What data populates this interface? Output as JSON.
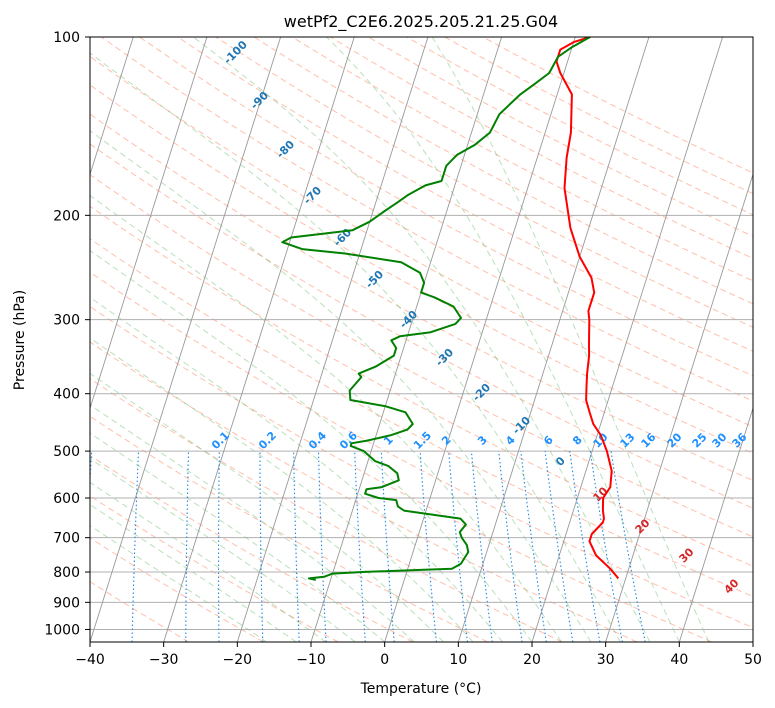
{
  "chart_data": {
    "type": "line",
    "title": "wetPf2_C2E6.2025.205.21.25.G04",
    "xlabel": "Temperature (°C)",
    "ylabel": "Pressure (hPa)",
    "xlim": [
      -40,
      50
    ],
    "ylim": [
      1050,
      100
    ],
    "y_scale": "log",
    "grid": true,
    "x_ticks": [
      "−40",
      "−30",
      "−20",
      "−10",
      "0",
      "10",
      "20",
      "30",
      "40",
      "50"
    ],
    "y_ticks": [
      "100",
      "200",
      "300",
      "400",
      "500",
      "600",
      "700",
      "800",
      "900",
      "1000"
    ],
    "series": [
      {
        "name": "",
        "color": "#ff0000",
        "points": [
          {
            "T": 29,
            "p": 820
          },
          {
            "T": 28.5,
            "p": 810
          },
          {
            "T": 27.5,
            "p": 790
          },
          {
            "T": 25,
            "p": 750
          },
          {
            "T": 23.5,
            "p": 710
          },
          {
            "T": 23.5,
            "p": 690
          },
          {
            "T": 24.5,
            "p": 660
          },
          {
            "T": 24.5,
            "p": 650
          },
          {
            "T": 24,
            "p": 630
          },
          {
            "T": 23.5,
            "p": 600
          },
          {
            "T": 24,
            "p": 575
          },
          {
            "T": 23.5,
            "p": 540
          },
          {
            "T": 22,
            "p": 500
          },
          {
            "T": 20.5,
            "p": 470
          },
          {
            "T": 19,
            "p": 450
          },
          {
            "T": 18,
            "p": 430
          },
          {
            "T": 17,
            "p": 410
          },
          {
            "T": 16.5,
            "p": 390
          },
          {
            "T": 16,
            "p": 370
          },
          {
            "T": 15.5,
            "p": 345
          },
          {
            "T": 15,
            "p": 330
          },
          {
            "T": 14,
            "p": 300
          },
          {
            "T": 13.5,
            "p": 290
          },
          {
            "T": 13.5,
            "p": 270
          },
          {
            "T": 12.5,
            "p": 255
          },
          {
            "T": 10,
            "p": 235
          },
          {
            "T": 7.5,
            "p": 210
          },
          {
            "T": 5,
            "p": 180
          },
          {
            "T": 4,
            "p": 160
          },
          {
            "T": 3.5,
            "p": 145
          },
          {
            "T": 2,
            "p": 125
          },
          {
            "T": -0.5,
            "p": 115
          },
          {
            "T": -1.5,
            "p": 110
          },
          {
            "T": -1.5,
            "p": 105
          },
          {
            "T": 0,
            "p": 102
          },
          {
            "T": 2,
            "p": 100
          }
        ]
      },
      {
        "name": "",
        "color": "#008000",
        "points": [
          {
            "T": -12,
            "p": 825
          },
          {
            "T": -13,
            "p": 820
          },
          {
            "T": -11,
            "p": 815
          },
          {
            "T": -10,
            "p": 805
          },
          {
            "T": -6,
            "p": 800
          },
          {
            "T": 0,
            "p": 795
          },
          {
            "T": 6,
            "p": 790
          },
          {
            "T": 7,
            "p": 775
          },
          {
            "T": 7.5,
            "p": 740
          },
          {
            "T": 7,
            "p": 720
          },
          {
            "T": 6,
            "p": 700
          },
          {
            "T": 5.5,
            "p": 685
          },
          {
            "T": 6,
            "p": 665
          },
          {
            "T": 5,
            "p": 650
          },
          {
            "T": 1,
            "p": 640
          },
          {
            "T": -3,
            "p": 630
          },
          {
            "T": -4,
            "p": 620
          },
          {
            "T": -4.5,
            "p": 605
          },
          {
            "T": -7,
            "p": 600
          },
          {
            "T": -9,
            "p": 590
          },
          {
            "T": -9,
            "p": 580
          },
          {
            "T": -7,
            "p": 575
          },
          {
            "T": -5,
            "p": 560
          },
          {
            "T": -5.5,
            "p": 545
          },
          {
            "T": -7,
            "p": 530
          },
          {
            "T": -9,
            "p": 520
          },
          {
            "T": -11,
            "p": 500
          },
          {
            "T": -13,
            "p": 490
          },
          {
            "T": -13,
            "p": 485
          },
          {
            "T": -11,
            "p": 480
          },
          {
            "T": -8,
            "p": 470
          },
          {
            "T": -6,
            "p": 460
          },
          {
            "T": -5.5,
            "p": 450
          },
          {
            "T": -7,
            "p": 430
          },
          {
            "T": -10,
            "p": 420
          },
          {
            "T": -15,
            "p": 410
          },
          {
            "T": -15.5,
            "p": 395
          },
          {
            "T": -15,
            "p": 385
          },
          {
            "T": -14.5,
            "p": 375
          },
          {
            "T": -15,
            "p": 370
          },
          {
            "T": -13,
            "p": 360
          },
          {
            "T": -11,
            "p": 345
          },
          {
            "T": -11,
            "p": 335
          },
          {
            "T": -12,
            "p": 325
          },
          {
            "T": -11,
            "p": 320
          },
          {
            "T": -7,
            "p": 315
          },
          {
            "T": -4,
            "p": 305
          },
          {
            "T": -3.5,
            "p": 298
          },
          {
            "T": -5,
            "p": 285
          },
          {
            "T": -8,
            "p": 275
          },
          {
            "T": -10,
            "p": 270
          },
          {
            "T": -10,
            "p": 260
          },
          {
            "T": -11,
            "p": 250
          },
          {
            "T": -14,
            "p": 240
          },
          {
            "T": -22,
            "p": 232
          },
          {
            "T": -28,
            "p": 228
          },
          {
            "T": -31,
            "p": 222
          },
          {
            "T": -30,
            "p": 218
          },
          {
            "T": -22,
            "p": 212
          },
          {
            "T": -20,
            "p": 205
          },
          {
            "T": -18.5,
            "p": 197
          },
          {
            "T": -17,
            "p": 190
          },
          {
            "T": -16,
            "p": 185
          },
          {
            "T": -14,
            "p": 178
          },
          {
            "T": -12,
            "p": 175
          },
          {
            "T": -12,
            "p": 170
          },
          {
            "T": -12,
            "p": 165
          },
          {
            "T": -11,
            "p": 158
          },
          {
            "T": -9,
            "p": 152
          },
          {
            "T": -7.5,
            "p": 145
          },
          {
            "T": -7,
            "p": 135
          },
          {
            "T": -5,
            "p": 125
          },
          {
            "T": -3.5,
            "p": 120
          },
          {
            "T": -2,
            "p": 115
          },
          {
            "T": -1.5,
            "p": 108
          },
          {
            "T": 0,
            "p": 104
          },
          {
            "T": 2,
            "p": 100
          }
        ]
      }
    ],
    "dry_adiabats": [
      "-100",
      "-90",
      "-80",
      "-70",
      "-60",
      "-50",
      "-40",
      "-30",
      "-20",
      "-10",
      "0"
    ],
    "moist_adiabats": [
      "10",
      "20",
      "30",
      "40"
    ],
    "mixing_ratios": [
      "0.1",
      "0.2",
      "0.4",
      "0.6",
      "1",
      "1.5",
      "2",
      "3",
      "4",
      "6",
      "8",
      "10",
      "13",
      "16",
      "20",
      "25",
      "30",
      "36"
    ],
    "colors": {
      "temperature": "#ff0000",
      "dewpoint": "#008000",
      "isotherms": "#999999",
      "dry_adiabats": "#ff8a65",
      "moist_adiabats": "#66bb6a",
      "mixing_ratio": "#1e88e5",
      "dry_label": "#1f77b4",
      "mix_label": "#1e90ff",
      "moist_label": "#d62728"
    }
  }
}
